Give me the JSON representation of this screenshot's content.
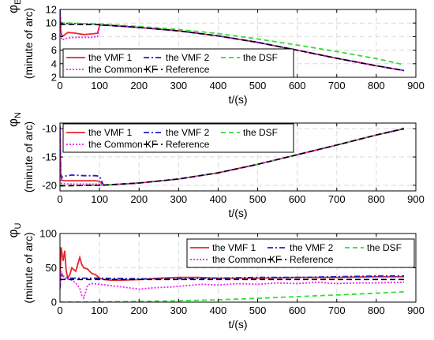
{
  "colors": {
    "vmf1": "#e8262b",
    "vmf2": "#1f1fc8",
    "dsf": "#33dd33",
    "ckf": "#ee22ee",
    "ref": "#000000"
  },
  "legend_labels": [
    "the VMF 1",
    "the VMF 2",
    "the DSF",
    "the Common KF",
    "Reference"
  ],
  "chart_data": [
    {
      "type": "line",
      "symbol": "φ",
      "subscript": "E",
      "ylabel": "(minute of arc)",
      "xlabel": "t/(s)",
      "xlim": [
        0,
        900
      ],
      "ylim": [
        2,
        12
      ],
      "xticks": [
        0,
        100,
        200,
        300,
        400,
        500,
        600,
        700,
        800,
        900
      ],
      "yticks": [
        2,
        4,
        6,
        8,
        10,
        12
      ],
      "grid": true,
      "legend_position": "bottom-left",
      "series": [
        {
          "name": "the VMF 1",
          "color_key": "vmf1",
          "dash": "",
          "x": [
            0,
            2,
            5,
            10,
            20,
            40,
            60,
            80,
            95,
            100,
            105,
            120,
            200,
            300,
            400,
            500,
            600,
            700,
            800,
            870
          ],
          "y": [
            12,
            9,
            8,
            8.2,
            8.6,
            8.5,
            8.3,
            8.4,
            8.5,
            9.6,
            9.7,
            9.7,
            9.35,
            8.85,
            8.1,
            7.15,
            6.0,
            4.8,
            3.7,
            3.0
          ]
        },
        {
          "name": "the VMF 2",
          "color_key": "vmf2",
          "dash": "7 3 2 3",
          "x": [
            0,
            2,
            5,
            10,
            20,
            40,
            60,
            80,
            100,
            105,
            120,
            200,
            300,
            400,
            500,
            600,
            700,
            800,
            870
          ],
          "y": [
            12,
            9.5,
            9.8,
            9.9,
            9.95,
            9.9,
            9.85,
            9.85,
            9.8,
            9.7,
            9.65,
            9.35,
            8.85,
            8.1,
            7.15,
            6.0,
            4.8,
            3.7,
            3.0
          ]
        },
        {
          "name": "the DSF",
          "color_key": "dsf",
          "dash": "6 4",
          "x": [
            0,
            5,
            20,
            100,
            200,
            300,
            400,
            500,
            600,
            700,
            800,
            870
          ],
          "y": [
            10,
            10.0,
            10.0,
            9.85,
            9.5,
            9.05,
            8.45,
            7.65,
            6.75,
            5.8,
            4.75,
            3.85
          ]
        },
        {
          "name": "the Common KF",
          "color_key": "ckf",
          "dash": "2 2",
          "x": [
            0,
            2,
            5,
            10,
            20,
            40,
            60,
            80,
            95,
            100,
            105,
            120,
            200,
            300,
            400,
            500,
            600,
            700,
            800,
            870
          ],
          "y": [
            12,
            8.5,
            7.5,
            7.6,
            7.8,
            7.9,
            7.9,
            7.9,
            8.0,
            9.5,
            9.7,
            9.7,
            9.35,
            8.85,
            8.1,
            7.15,
            6.0,
            4.8,
            3.7,
            3.0
          ]
        },
        {
          "name": "Reference",
          "color_key": "ref",
          "dash": "7 4",
          "x": [
            0,
            100,
            200,
            300,
            400,
            500,
            600,
            700,
            800,
            870
          ],
          "y": [
            9.8,
            9.75,
            9.35,
            8.85,
            8.1,
            7.15,
            6.0,
            4.8,
            3.7,
            3.0
          ]
        }
      ]
    },
    {
      "type": "line",
      "symbol": "φ",
      "subscript": "N",
      "ylabel": "(minute of arc)",
      "xlabel": "t/(s)",
      "xlim": [
        0,
        900
      ],
      "ylim": [
        -21,
        -9
      ],
      "xticks": [
        0,
        100,
        200,
        300,
        400,
        500,
        600,
        700,
        800,
        900
      ],
      "yticks": [
        -20,
        -15,
        -10
      ],
      "grid": true,
      "legend_position": "top-left",
      "series": [
        {
          "name": "the VMF 1",
          "color_key": "vmf1",
          "dash": "",
          "x": [
            0,
            2,
            5,
            10,
            30,
            60,
            90,
            100,
            110,
            200,
            300,
            400,
            500,
            600,
            700,
            800,
            870
          ],
          "y": [
            -9.5,
            -18.5,
            -19.1,
            -19.2,
            -19.2,
            -19.2,
            -19.2,
            -19.3,
            -20.0,
            -19.6,
            -18.9,
            -17.8,
            -16.3,
            -14.6,
            -12.9,
            -11.1,
            -10.0
          ]
        },
        {
          "name": "the VMF 2",
          "color_key": "vmf2",
          "dash": "7 3 2 3",
          "x": [
            0,
            2,
            5,
            10,
            30,
            60,
            90,
            100,
            110,
            200,
            300,
            400,
            500,
            600,
            700,
            800,
            870
          ],
          "y": [
            -9.5,
            -18.0,
            -18.6,
            -18.4,
            -18.2,
            -18.3,
            -18.3,
            -18.4,
            -20.0,
            -19.6,
            -18.9,
            -17.8,
            -16.3,
            -14.6,
            -12.9,
            -11.1,
            -10.0
          ]
        },
        {
          "name": "the DSF",
          "color_key": "dsf",
          "dash": "6 4",
          "x": [
            0,
            100,
            200,
            300,
            400,
            500,
            600,
            700,
            800,
            870
          ],
          "y": [
            -20.1,
            -20.0,
            -19.6,
            -18.9,
            -17.8,
            -16.3,
            -14.6,
            -12.9,
            -11.1,
            -9.9
          ]
        },
        {
          "name": "the Common KF",
          "color_key": "ckf",
          "dash": "2 2",
          "x": [
            0,
            2,
            5,
            10,
            30,
            60,
            90,
            100,
            110,
            200,
            300,
            400,
            500,
            600,
            700,
            800,
            870
          ],
          "y": [
            -9.5,
            -19.5,
            -19.7,
            -19.75,
            -19.8,
            -19.8,
            -19.8,
            -19.8,
            -20.0,
            -19.6,
            -18.9,
            -17.8,
            -16.3,
            -14.6,
            -12.9,
            -11.1,
            -10.0
          ]
        },
        {
          "name": "Reference",
          "color_key": "ref",
          "dash": "7 4",
          "x": [
            0,
            100,
            200,
            300,
            400,
            500,
            600,
            700,
            800,
            870
          ],
          "y": [
            -20.1,
            -20.0,
            -19.6,
            -18.9,
            -17.8,
            -16.3,
            -14.6,
            -12.9,
            -11.1,
            -10.0
          ]
        }
      ]
    },
    {
      "type": "line",
      "symbol": "φ",
      "subscript": "U",
      "ylabel": "(minute of arc)",
      "xlabel": "t/(s)",
      "xlim": [
        0,
        900
      ],
      "ylim": [
        0,
        100
      ],
      "xticks": [
        0,
        100,
        200,
        300,
        400,
        500,
        600,
        700,
        800,
        900
      ],
      "yticks": [
        0,
        50,
        100
      ],
      "grid": true,
      "legend_position": "top-right",
      "series": [
        {
          "name": "the VMF 1",
          "color_key": "vmf1",
          "dash": "",
          "x": [
            0,
            3,
            8,
            12,
            16,
            20,
            25,
            30,
            40,
            50,
            55,
            60,
            70,
            80,
            90,
            100,
            110,
            130,
            150,
            200,
            250,
            300,
            350,
            400,
            500,
            600,
            700,
            800,
            870
          ],
          "y": [
            30,
            80,
            60,
            75,
            45,
            35,
            40,
            50,
            45,
            65,
            55,
            50,
            48,
            42,
            40,
            35,
            33,
            32,
            32,
            33,
            35,
            36,
            36,
            35,
            35,
            36,
            36,
            37,
            37
          ]
        },
        {
          "name": "the VMF 2",
          "color_key": "vmf2",
          "dash": "7 3 2 3",
          "x": [
            0,
            3,
            8,
            15,
            30,
            60,
            100,
            200,
            300,
            400,
            500,
            600,
            700,
            800,
            870
          ],
          "y": [
            20,
            40,
            38,
            36,
            35,
            35,
            35,
            34,
            34,
            35,
            36,
            36,
            37,
            38,
            38
          ]
        },
        {
          "name": "the DSF",
          "color_key": "dsf",
          "dash": "6 4",
          "x": [
            0,
            100,
            200,
            300,
            400,
            500,
            600,
            700,
            800,
            870
          ],
          "y": [
            0,
            0.3,
            1.0,
            2.0,
            3.5,
            5.5,
            8.0,
            10.5,
            13.0,
            15.0
          ]
        },
        {
          "name": "the Common KF",
          "color_key": "ckf",
          "dash": "2 2",
          "x": [
            0,
            3,
            10,
            20,
            30,
            40,
            50,
            55,
            60,
            65,
            70,
            80,
            100,
            130,
            160,
            200,
            240,
            280,
            320,
            360,
            400,
            450,
            500,
            550,
            600,
            650,
            700,
            750,
            800,
            870
          ],
          "y": [
            20,
            45,
            35,
            34,
            32,
            28,
            20,
            10,
            6,
            15,
            25,
            27,
            26,
            24,
            22,
            19,
            21,
            22,
            24,
            26,
            25,
            27,
            26,
            28,
            27,
            29,
            27,
            28,
            28,
            29
          ]
        },
        {
          "name": "Reference",
          "color_key": "ref",
          "dash": "7 4",
          "x": [
            0,
            100,
            200,
            300,
            400,
            500,
            600,
            700,
            800,
            870
          ],
          "y": [
            33,
            33,
            33,
            33,
            33,
            33,
            33,
            33,
            33,
            33
          ]
        }
      ]
    }
  ]
}
